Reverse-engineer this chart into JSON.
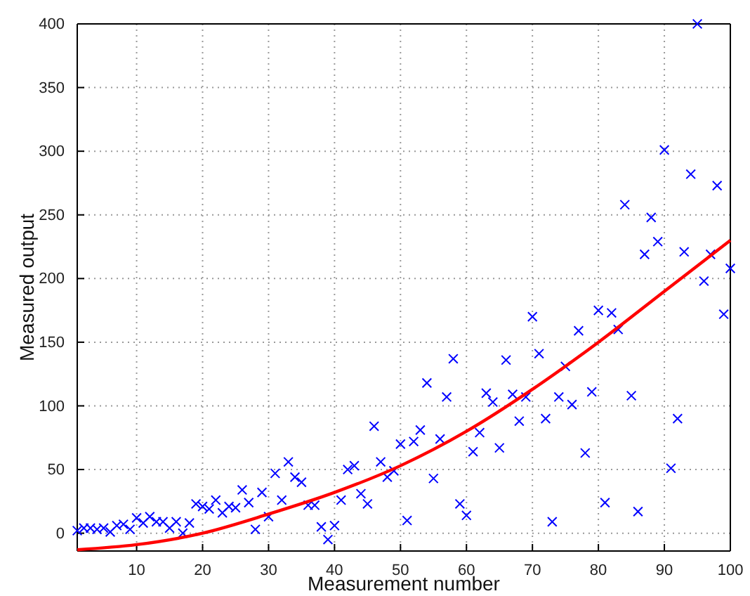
{
  "chart_data": {
    "type": "scatter",
    "xlabel": "Measurement number",
    "ylabel": "Measured output",
    "xlim": [
      1,
      100
    ],
    "ylim": [
      -14,
      400
    ],
    "xticks": [
      10,
      20,
      30,
      40,
      50,
      60,
      70,
      80,
      90,
      100
    ],
    "yticks": [
      0,
      50,
      100,
      150,
      200,
      250,
      300,
      350,
      400
    ],
    "grid": true,
    "series": [
      {
        "color": "#0000ff",
        "marker": "cross",
        "x": [
          1,
          2,
          3,
          4,
          5,
          6,
          7,
          8,
          9,
          10,
          11,
          12,
          13,
          14,
          15,
          16,
          17,
          18,
          19,
          20,
          21,
          22,
          23,
          24,
          25,
          26,
          27,
          28,
          29,
          30,
          31,
          32,
          33,
          34,
          35,
          36,
          37,
          38,
          39,
          40,
          41,
          42,
          43,
          44,
          45,
          46,
          47,
          48,
          49,
          50,
          51,
          52,
          53,
          54,
          55,
          56,
          57,
          58,
          59,
          60,
          61,
          62,
          63,
          64,
          65,
          66,
          67,
          68,
          69,
          70,
          71,
          72,
          73,
          74,
          75,
          76,
          77,
          78,
          79,
          80,
          81,
          82,
          83,
          84,
          85,
          86,
          87,
          88,
          89,
          90,
          91,
          92,
          93,
          94,
          95,
          96,
          97,
          98,
          99,
          100
        ],
        "values": [
          2,
          4,
          4,
          3,
          4,
          1,
          6,
          7,
          3,
          12,
          8,
          13,
          9,
          9,
          4,
          9,
          0,
          8,
          23,
          21,
          19,
          26,
          16,
          21,
          20,
          34,
          24,
          3,
          32,
          13,
          47,
          26,
          56,
          44,
          40,
          22,
          22,
          5,
          -5,
          6,
          26,
          50,
          53,
          31,
          23,
          84,
          56,
          44,
          49,
          70,
          10,
          72,
          81,
          118,
          43,
          74,
          107,
          137,
          23,
          14,
          64,
          79,
          110,
          103,
          67,
          136,
          109,
          88,
          107,
          170,
          141,
          90,
          9,
          107,
          131,
          101,
          159,
          63,
          111,
          175,
          24,
          173,
          160,
          258,
          108,
          17,
          219,
          248,
          229,
          301,
          51,
          90,
          221,
          282,
          400,
          198,
          219,
          273,
          172,
          208
        ]
      },
      {
        "type": "line",
        "color": "#ff0000",
        "marker": "none",
        "line_style": "solid",
        "x": [
          1,
          10,
          20,
          30,
          40,
          50,
          60,
          70,
          80,
          90,
          100
        ],
        "values": [
          -13,
          -9,
          0,
          15,
          32,
          53,
          80,
          113,
          150,
          190,
          230
        ]
      }
    ]
  }
}
